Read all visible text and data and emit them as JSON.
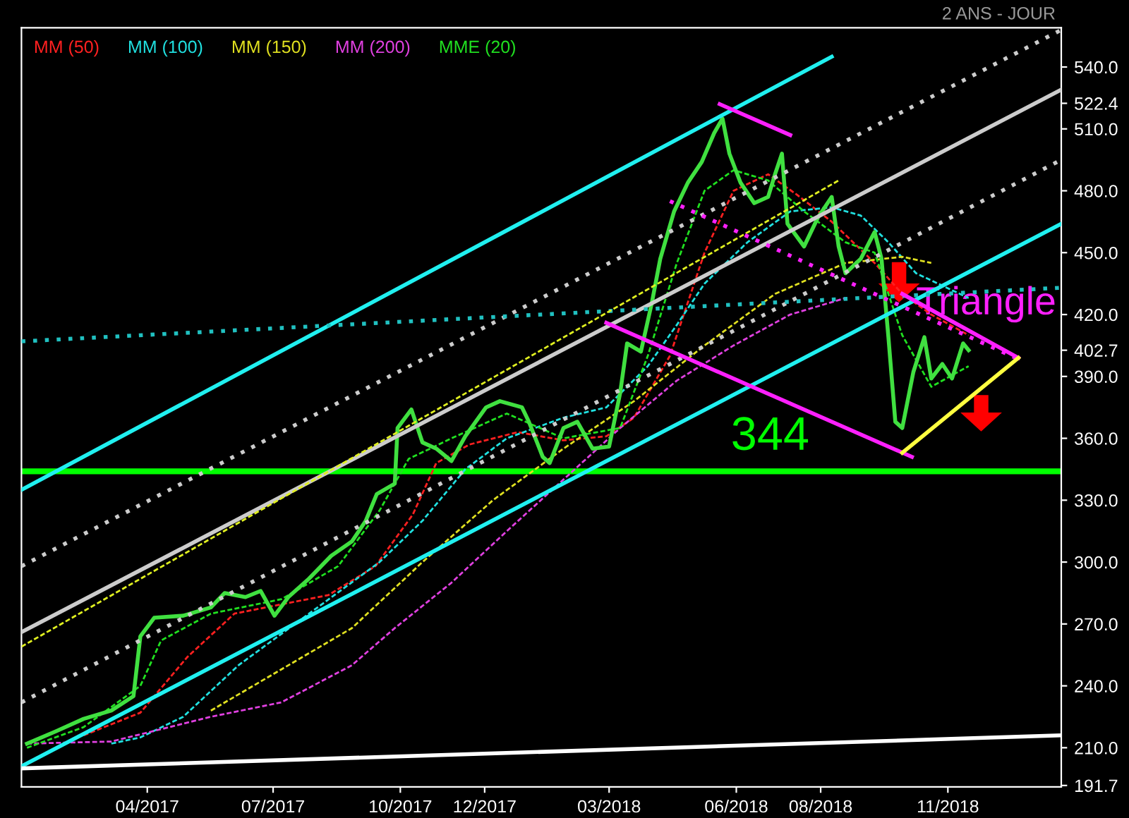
{
  "chart_data": {
    "type": "line",
    "subtitle": "2 ANS - JOUR",
    "legend": "top left",
    "xlim": [
      "2016-12-31",
      "2019-01-22"
    ],
    "ylim": [
      191,
      559
    ],
    "xticks": [
      {
        "value": "2017-04-01",
        "label": "04/2017"
      },
      {
        "value": "2017-07-01",
        "label": "07/2017"
      },
      {
        "value": "2017-10-01",
        "label": "10/2017"
      },
      {
        "value": "2017-12-01",
        "label": "12/2017"
      },
      {
        "value": "2018-03-01",
        "label": "03/2018"
      },
      {
        "value": "2018-06-01",
        "label": "06/2018"
      },
      {
        "value": "2018-08-01",
        "label": "08/2018"
      },
      {
        "value": "2018-11-01",
        "label": "11/2018"
      }
    ],
    "yticks": [
      {
        "value": 191.7,
        "label": "191.7"
      },
      {
        "value": 210,
        "label": "210.0"
      },
      {
        "value": 240,
        "label": "240.0"
      },
      {
        "value": 270,
        "label": "270.0"
      },
      {
        "value": 300,
        "label": "300.0"
      },
      {
        "value": 330,
        "label": "330.0"
      },
      {
        "value": 360,
        "label": "360.0"
      },
      {
        "value": 390,
        "label": "390.0"
      },
      {
        "value": 402.7,
        "label": "402.7"
      },
      {
        "value": 420,
        "label": "420.0"
      },
      {
        "value": 450,
        "label": "450.0"
      },
      {
        "value": 480,
        "label": "480.0"
      },
      {
        "value": 510,
        "label": "510.0"
      },
      {
        "value": 522.4,
        "label": "522.4"
      },
      {
        "value": 540,
        "label": "540.0"
      }
    ],
    "ref_lines": [
      {
        "axis": "y",
        "value": 344,
        "label": "344",
        "color": "#00ff00"
      }
    ],
    "annotations": [
      {
        "text": "Triangle",
        "x": "2018-10-09",
        "y": 425
      }
    ],
    "series": [
      {
        "name": "MM (50)",
        "color": "#ff2020",
        "line_style": "dashed",
        "x": [
          "2017-02-14",
          "2017-03-27",
          "2017-04-30",
          "2017-06-03",
          "2017-08-10",
          "2017-09-13",
          "2017-10-10",
          "2017-10-27",
          "2017-11-20",
          "2017-12-25",
          "2018-01-27",
          "2018-02-27",
          "2018-03-19",
          "2018-04-14",
          "2018-05-09",
          "2018-05-30",
          "2018-06-24",
          "2018-07-15",
          "2018-08-09",
          "2018-09-09",
          "2018-09-29",
          "2018-10-20",
          "2018-11-16"
        ],
        "values": [
          216,
          227,
          254,
          275,
          284,
          298,
          323,
          348,
          357,
          363,
          359,
          361,
          370,
          400,
          450,
          480,
          488,
          478,
          465,
          445,
          430,
          420,
          410
        ]
      },
      {
        "name": "MM (100)",
        "color": "#20e0e0",
        "line_style": "dashed",
        "x": [
          "2017-03-06",
          "2017-03-27",
          "2017-04-27",
          "2017-06-06",
          "2017-07-27",
          "2017-09-16",
          "2017-10-17",
          "2017-11-17",
          "2017-12-17",
          "2018-01-27",
          "2018-02-27",
          "2018-03-29",
          "2018-04-19",
          "2018-05-09",
          "2018-06-09",
          "2018-07-10",
          "2018-08-09",
          "2018-08-30",
          "2018-09-19",
          "2018-10-09",
          "2018-11-16"
        ],
        "values": [
          212,
          215,
          225,
          250,
          275,
          300,
          320,
          345,
          360,
          370,
          375,
          395,
          415,
          435,
          455,
          470,
          472,
          468,
          455,
          440,
          428
        ]
      },
      {
        "name": "MM (150)",
        "color": "#e0e020",
        "line_style": "dashed",
        "x": [
          "2017-05-17",
          "2017-07-07",
          "2017-08-27",
          "2017-10-17",
          "2017-12-07",
          "2018-01-27",
          "2018-03-19",
          "2018-05-09",
          "2018-06-29",
          "2018-08-19",
          "2018-09-29",
          "2018-10-20"
        ],
        "values": [
          228,
          248,
          268,
          300,
          330,
          355,
          378,
          405,
          430,
          445,
          448,
          445
        ]
      },
      {
        "name": "MM (200)",
        "color": "#e040e0",
        "line_style": "dashed",
        "x": [
          "2017-01-04",
          "2017-03-06",
          "2017-05-17",
          "2017-07-07",
          "2017-08-27",
          "2017-09-27",
          "2017-11-07",
          "2017-12-17",
          "2018-01-27",
          "2018-03-09",
          "2018-04-19",
          "2018-05-30",
          "2018-07-10",
          "2018-08-19"
        ],
        "values": [
          212,
          213,
          225,
          232,
          250,
          268,
          290,
          315,
          340,
          365,
          388,
          405,
          420,
          428
        ]
      },
      {
        "name": "MME (20)",
        "color": "#20e020",
        "line_style": "dashed",
        "x": [
          "2017-01-04",
          "2017-02-14",
          "2017-03-27",
          "2017-04-11",
          "2017-05-17",
          "2017-07-07",
          "2017-08-17",
          "2017-09-16",
          "2017-10-07",
          "2017-11-07",
          "2017-12-17",
          "2018-01-27",
          "2018-03-09",
          "2018-03-29",
          "2018-04-19",
          "2018-05-09",
          "2018-05-30",
          "2018-06-24",
          "2018-07-20",
          "2018-08-19",
          "2018-09-09",
          "2018-09-29",
          "2018-10-20",
          "2018-11-16"
        ],
        "values": [
          210,
          220,
          240,
          262,
          275,
          282,
          298,
          325,
          350,
          360,
          372,
          360,
          365,
          400,
          445,
          480,
          490,
          485,
          470,
          455,
          450,
          410,
          385,
          395
        ]
      },
      {
        "color": "#40e040",
        "line_style": "solid",
        "x": [
          "2017-01-04",
          "2017-01-25",
          "2017-02-14",
          "2017-03-06",
          "2017-03-22",
          "2017-03-27",
          "2017-04-06",
          "2017-04-27",
          "2017-05-17",
          "2017-05-27",
          "2017-06-11",
          "2017-06-22",
          "2017-07-02",
          "2017-07-12",
          "2017-07-27",
          "2017-08-12",
          "2017-08-27",
          "2017-09-06",
          "2017-09-14",
          "2017-09-27",
          "2017-09-29",
          "2017-10-09",
          "2017-10-17",
          "2017-10-27",
          "2017-11-07",
          "2017-11-17",
          "2017-12-02",
          "2017-12-12",
          "2017-12-28",
          "2018-01-02",
          "2018-01-12",
          "2018-01-17",
          "2018-01-27",
          "2018-02-06",
          "2018-02-17",
          "2018-03-01",
          "2018-03-09",
          "2018-03-14",
          "2018-03-24",
          "2018-04-01",
          "2018-04-07",
          "2018-04-17",
          "2018-04-27",
          "2018-05-07",
          "2018-05-16",
          "2018-05-22",
          "2018-05-27",
          "2018-06-04",
          "2018-06-14",
          "2018-06-24",
          "2018-06-29",
          "2018-07-04",
          "2018-07-08",
          "2018-07-20",
          "2018-07-30",
          "2018-08-09",
          "2018-08-14",
          "2018-08-19",
          "2018-08-30",
          "2018-09-09",
          "2018-09-14",
          "2018-09-19",
          "2018-09-24",
          "2018-09-29",
          "2018-10-07",
          "2018-10-15",
          "2018-10-20",
          "2018-10-28",
          "2018-11-04",
          "2018-11-12",
          "2018-11-16"
        ],
        "values": [
          212,
          218,
          224,
          228,
          235,
          264,
          273,
          274,
          278,
          285,
          283,
          286,
          274,
          283,
          292,
          303,
          310,
          320,
          333,
          338,
          365,
          374,
          358,
          355,
          349,
          361,
          375,
          378,
          375,
          368,
          351,
          348,
          365,
          368,
          355,
          356,
          382,
          406,
          402,
          426,
          447,
          470,
          484,
          494,
          508,
          515,
          498,
          484,
          474,
          477,
          488,
          498,
          464,
          453,
          467,
          477,
          453,
          440,
          447,
          460,
          447,
          409,
          368,
          365,
          392,
          409,
          389,
          396,
          389,
          406,
          402.7
        ]
      },
      {
        "color": "#20f0f0",
        "line_style": "solid",
        "x": [
          "2016-12-31",
          "2018-08-09"
        ],
        "values": [
          335,
          545
        ]
      },
      {
        "color": "#20f0f0",
        "line_style": "solid",
        "x": [
          "2016-12-31",
          "2019-01-22"
        ],
        "values": [
          201,
          464
        ]
      },
      {
        "color": "#ffffff",
        "line_style": "solid",
        "x": [
          "2016-12-31",
          "2019-01-22"
        ],
        "values": [
          200,
          216
        ]
      },
      {
        "color": "#cccccc",
        "line_style": "dotted",
        "x": [
          "2016-12-31",
          "2019-01-22"
        ],
        "values": [
          232,
          495
        ]
      },
      {
        "color": "#cccccc",
        "line_style": "solid",
        "x": [
          "2016-12-31",
          "2019-01-22"
        ],
        "values": [
          266,
          529
        ]
      },
      {
        "color": "#cccccc",
        "line_style": "dotted",
        "x": [
          "2016-12-31",
          "2019-01-22"
        ],
        "values": [
          298,
          558
        ]
      },
      {
        "color": "#20c0c0",
        "line_style": "dotted",
        "x": [
          "2016-12-31",
          "2019-01-22"
        ],
        "values": [
          407,
          433
        ]
      },
      {
        "color": "#e0f020",
        "line_style": "dashed",
        "x": [
          "2016-12-31",
          "2018-08-14"
        ],
        "values": [
          259,
          485
        ]
      },
      {
        "color": "#ff20ff",
        "line_style": "solid",
        "x": [
          "2018-05-20",
          "2018-07-10"
        ],
        "values": [
          522,
          507
        ]
      },
      {
        "color": "#ff20ff",
        "line_style": "dotted",
        "x": [
          "2018-04-14",
          "2018-12-20"
        ],
        "values": [
          475,
          399
        ]
      },
      {
        "color": "#ff20ff",
        "line_style": "solid",
        "x": [
          "2018-02-27",
          "2018-10-06"
        ],
        "values": [
          416,
          351
        ]
      },
      {
        "color": "#ff20ff",
        "line_style": "solid",
        "x": [
          "2018-09-29",
          "2018-12-22"
        ],
        "values": [
          430,
          399
        ]
      },
      {
        "color": "#ffff40",
        "line_style": "solid",
        "x": [
          "2018-09-29",
          "2018-12-22"
        ],
        "values": [
          353,
          399
        ]
      }
    ]
  }
}
